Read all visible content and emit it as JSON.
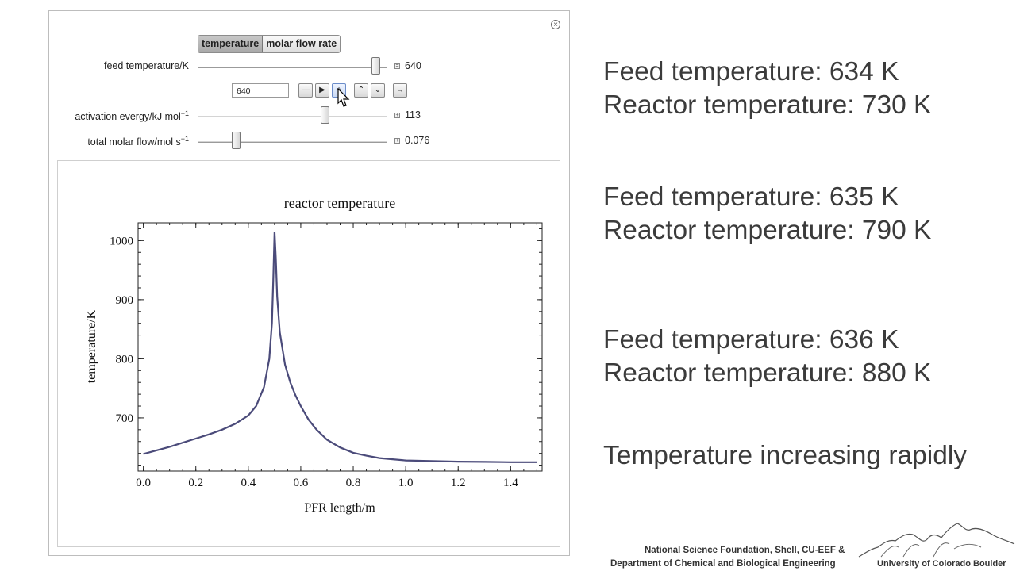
{
  "tabs": [
    {
      "label": "temperature",
      "selected": true
    },
    {
      "label": "molar flow rate",
      "selected": false
    }
  ],
  "controls": {
    "feed_temperature": {
      "label": "feed temperature/K",
      "value": "640",
      "input_value": "640",
      "level": 0.94
    },
    "activation_energy": {
      "label": "activation evergy/kJ mol",
      "superscript": "−1",
      "value": "113",
      "level": 0.67
    },
    "total_molar_flow": {
      "label": "total molar flow/mol s",
      "superscript": "−1",
      "value": "0.076",
      "level": 0.2
    }
  },
  "animator_icons": [
    "minus-icon",
    "play-icon",
    "plus-icon",
    "faster-icon",
    "slower-icon",
    "direction-icon"
  ],
  "chart_data": {
    "type": "line",
    "title": "reactor temperature",
    "xlabel": "PFR length/m",
    "ylabel": "temperature/K",
    "xlim": [
      -0.02,
      1.52
    ],
    "ylim": [
      610,
      1030
    ],
    "xticks": [
      0.0,
      0.2,
      0.4,
      0.6,
      0.8,
      1.0,
      1.2,
      1.4
    ],
    "xtick_labels": [
      "0.0",
      "0.2",
      "0.4",
      "0.6",
      "0.8",
      "1.0",
      "1.2",
      "1.4"
    ],
    "yticks": [
      700,
      800,
      900,
      1000
    ],
    "ytick_labels": [
      "700",
      "800",
      "900",
      "1000"
    ],
    "color": "#4b4b7a",
    "series": [
      {
        "x": [
          0.0,
          0.05,
          0.1,
          0.15,
          0.2,
          0.25,
          0.3,
          0.35,
          0.4,
          0.43,
          0.46,
          0.48,
          0.49,
          0.495,
          0.5,
          0.505,
          0.51,
          0.52,
          0.54,
          0.56,
          0.58,
          0.6,
          0.63,
          0.66,
          0.7,
          0.75,
          0.8,
          0.85,
          0.9,
          0.95,
          1.0,
          1.1,
          1.2,
          1.3,
          1.4,
          1.5
        ],
        "y": [
          639,
          645,
          651,
          658,
          665,
          672,
          680,
          690,
          704,
          720,
          752,
          800,
          860,
          930,
          1015,
          970,
          905,
          845,
          790,
          760,
          738,
          720,
          697,
          680,
          663,
          650,
          641,
          636,
          632,
          630,
          628,
          627,
          626,
          625.5,
          625,
          625
        ]
      }
    ]
  },
  "notes": [
    {
      "line1": "Feed temperature: 634 K",
      "line2": "Reactor temperature: 730 K"
    },
    {
      "line1": "Feed temperature: 635 K",
      "line2": "Reactor temperature: 790 K"
    },
    {
      "line1": "Feed temperature: 636 K",
      "line2": "Reactor temperature: 880 K"
    }
  ],
  "note_final": "Temperature increasing rapidly",
  "credits": {
    "line1": "National Science Foundation, Shell, CU-EEF &",
    "line2": "Department of Chemical and Biological Engineering",
    "university": "University of Colorado Boulder"
  }
}
